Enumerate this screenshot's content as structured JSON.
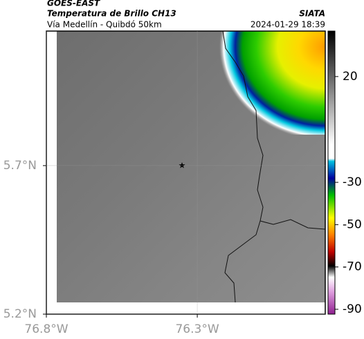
{
  "header": {
    "title": "GOES-EAST",
    "subtitle": "Temperatura de Brillo CH13",
    "route": "Vía Medellín - Quibdó 50km",
    "source": "SIATA",
    "timestamp": "2024-01-29 18:39"
  },
  "map": {
    "latlim": [
      5.2,
      6.153
    ],
    "lonlim": [
      -76.8,
      -75.876
    ],
    "lat_ticks": [
      {
        "value": 5.7,
        "label": "5.7°N"
      },
      {
        "value": 5.2,
        "label": "5.2°N"
      }
    ],
    "lon_ticks": [
      {
        "value": -76.8,
        "label": "76.8°W"
      },
      {
        "value": -76.3,
        "label": "76.3°W"
      }
    ],
    "grid": true
  },
  "colorbar": {
    "lim": [
      -92.3,
      41.5
    ],
    "ticks": [
      20,
      -30,
      -50,
      -70,
      -90
    ]
  }
}
